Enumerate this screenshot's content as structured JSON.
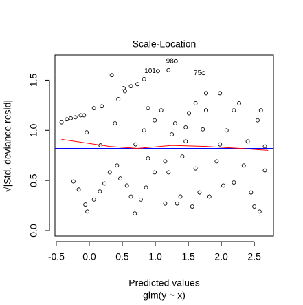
{
  "chart_data": {
    "type": "scatter",
    "title": "Scale-Location",
    "x_label": "Predicted values",
    "subtitle": "glm(y ~ x)",
    "y_label": "√|Std. deviance resid|",
    "point_color": "#000000",
    "x": [
      -0.42,
      -0.34,
      -0.28,
      -0.21,
      -0.13,
      -0.08,
      0.07,
      0.19,
      -0.04,
      -0.24,
      -0.16,
      -0.06,
      -0.03,
      0.07,
      0.16,
      0.23,
      0.17,
      0.34,
      0.39,
      0.44,
      0.52,
      0.63,
      0.73,
      0.83,
      0.54,
      0.31,
      0.42,
      0.47,
      0.57,
      0.63,
      0.69,
      0.78,
      0.86,
      0.89,
      0.83,
      0.89,
      0.99,
      1.04,
      1.2,
      1.31,
      1.73,
      1.15,
      1.2,
      1.15,
      1.33,
      1.38,
      1.41,
      1.46,
      1.3,
      1.51,
      1.61,
      1.77,
      1.72,
      1.61,
      1.67,
      1.82,
      1.93,
      1.98,
      2.08,
      2.19,
      2.27,
      2.19,
      2.34,
      2.45,
      2.5,
      2.58,
      2.55,
      2.6,
      2.66,
      2.4,
      1.77,
      1.98,
      1.09,
      1.25,
      1.56,
      2.03,
      2.66,
      0.7,
      0.99,
      1.46
    ],
    "values": [
      1.08,
      1.11,
      1.12,
      1.13,
      1.15,
      1.15,
      1.22,
      1.24,
      0.98,
      0.49,
      0.41,
      0.26,
      0.19,
      0.31,
      0.39,
      0.47,
      0.85,
      1.55,
      1.07,
      1.31,
      1.42,
      1.44,
      1.46,
      1.51,
      1.39,
      0.58,
      0.65,
      0.52,
      0.45,
      0.34,
      0.17,
      0.31,
      0.43,
      0.72,
      1.0,
      1.22,
      1.1,
      1.59,
      1.6,
      1.69,
      1.57,
      0.69,
      0.58,
      0.27,
      0.27,
      0.34,
      0.74,
      0.89,
      1.07,
      1.17,
      1.27,
      1.2,
      1.01,
      0.62,
      0.38,
      0.34,
      0.69,
      0.86,
      1.0,
      1.2,
      1.27,
      0.48,
      0.65,
      0.38,
      0.24,
      0.19,
      1.1,
      1.2,
      0.84,
      0.89,
      1.37,
      1.37,
      1.2,
      0.96,
      0.24,
      0.45,
      0.6,
      0.86,
      0.58,
      1.03
    ],
    "point_labels": [
      null,
      null,
      null,
      null,
      null,
      null,
      null,
      null,
      null,
      null,
      null,
      null,
      null,
      null,
      null,
      null,
      null,
      null,
      null,
      null,
      null,
      null,
      null,
      null,
      null,
      null,
      null,
      null,
      null,
      null,
      null,
      null,
      null,
      null,
      null,
      null,
      null,
      "101",
      null,
      "98",
      "75",
      null,
      null,
      null,
      null,
      null,
      null,
      null,
      null,
      null,
      null,
      null,
      null,
      null,
      null,
      null,
      null,
      null,
      null,
      null,
      null,
      null,
      null,
      null,
      null,
      null,
      null,
      null,
      null,
      null,
      null,
      null,
      null,
      null,
      null,
      null,
      null,
      null,
      null,
      null
    ],
    "smooth": {
      "color": "#ff0000",
      "x": [
        -0.42,
        0.31,
        0.73,
        1.25,
        1.77,
        2.29,
        2.71
      ],
      "values": [
        0.91,
        0.84,
        0.82,
        0.85,
        0.84,
        0.82,
        0.8
      ]
    },
    "hline": {
      "value": 0.82,
      "color": "#0000ff"
    },
    "xlim": [
      -0.52,
      2.79
    ],
    "ylim": [
      -0.055,
      1.75
    ],
    "xticks": [
      -0.5,
      {
        "value": 0,
        "label": "0.0"
      },
      0.5,
      {
        "value": 1,
        "label": "1.0"
      },
      1.5,
      {
        "value": 2,
        "label": "2.0"
      },
      2.5
    ],
    "yticks": [
      {
        "value": 0,
        "label": "0.0"
      },
      0.5,
      {
        "value": 1,
        "label": "1.0"
      },
      1.5
    ]
  }
}
